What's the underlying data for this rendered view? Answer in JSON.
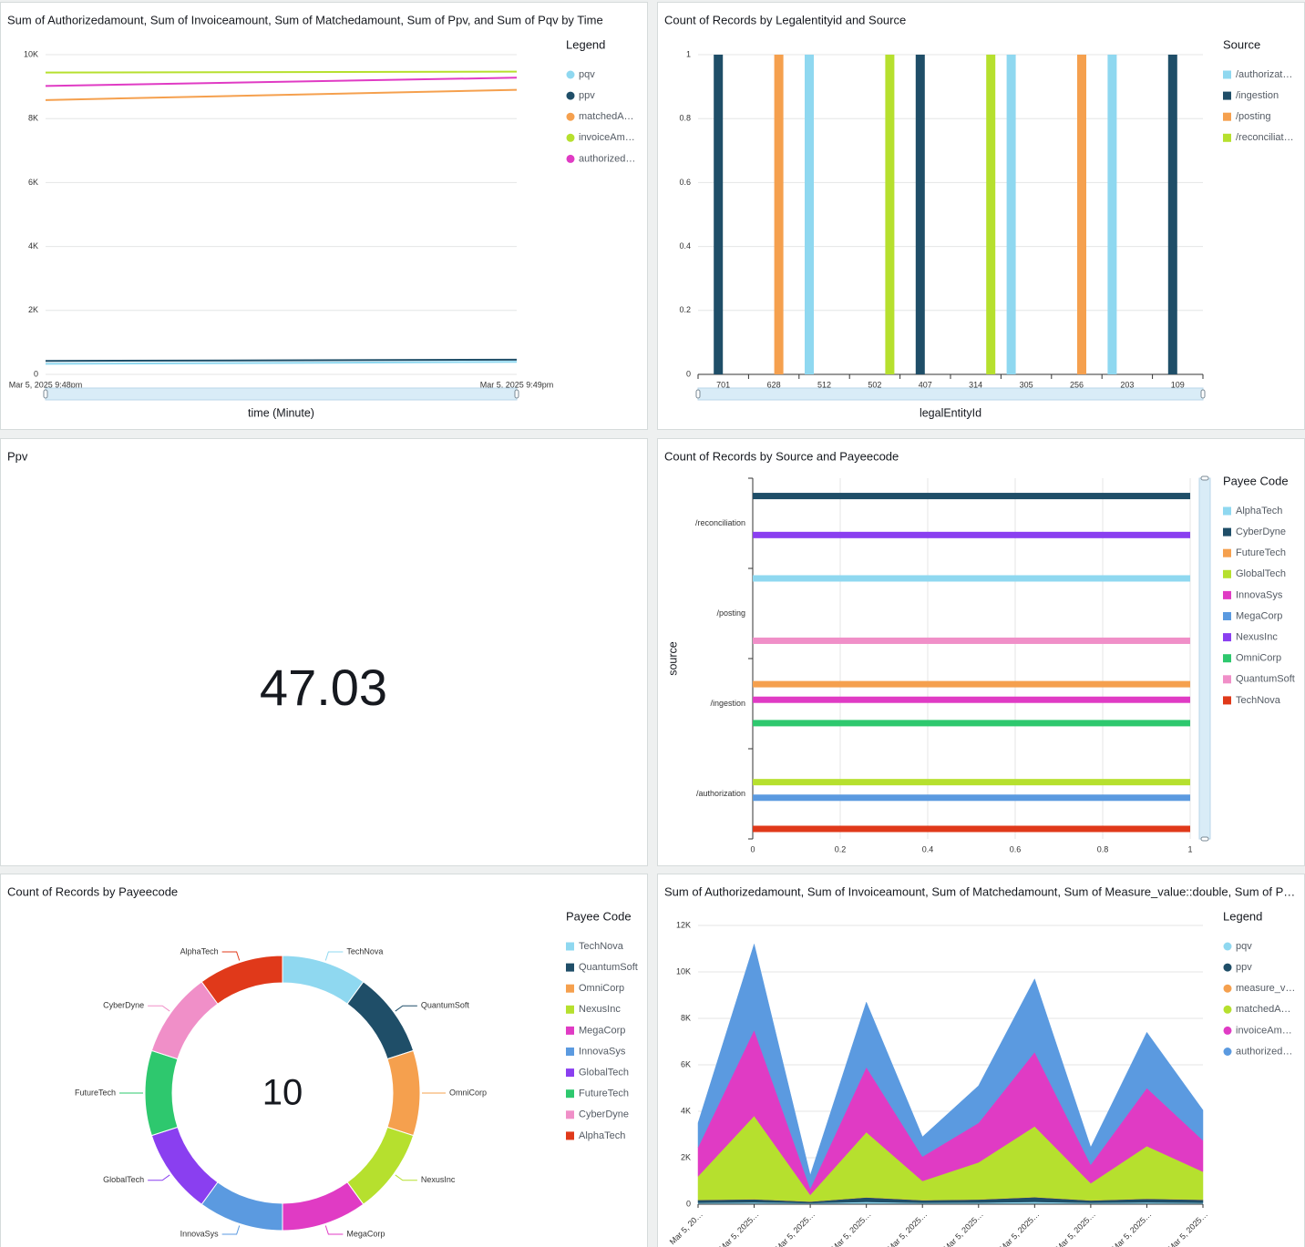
{
  "chart_data": [
    {
      "type": "line",
      "title": "Sum of Authorizedamount, Sum of Invoiceamount, Sum of Matchedamount, Sum of Ppv, and Sum of Pqv by Time",
      "x": [
        "Mar 5, 2025 9:48pm",
        "Mar 5, 2025 9:49pm"
      ],
      "x_label": "time (Minute)",
      "legend_title": "Legend",
      "series": [
        {
          "name": "pqv",
          "color": "#8fd8f0",
          "values": [
            330,
            390
          ]
        },
        {
          "name": "ppv",
          "color": "#1f4e68",
          "values": [
            420,
            460
          ]
        },
        {
          "name": "matchedA…",
          "color": "#f5a04e",
          "values": [
            8580,
            8900
          ]
        },
        {
          "name": "invoiceAm…",
          "color": "#b6e02e",
          "values": [
            9440,
            9470
          ]
        },
        {
          "name": "authorized…",
          "color": "#e03bc4",
          "values": [
            9020,
            9280
          ]
        }
      ],
      "ylim": [
        0,
        10000
      ],
      "yticks": [
        0,
        {
          "value": 2000,
          "label": "2K"
        },
        {
          "value": 4000,
          "label": "4K"
        },
        {
          "value": 6000,
          "label": "6K"
        },
        {
          "value": 8000,
          "label": "8K"
        },
        {
          "value": 10000,
          "label": "10K"
        }
      ],
      "grid": true
    },
    {
      "type": "bar",
      "orientation": "vertical",
      "title": "Count of Records by Legalentityid and Source",
      "categories": [
        "701",
        "628",
        "512",
        "502",
        "407",
        "314",
        "305",
        "256",
        "203",
        "109"
      ],
      "x_label": "legalEntityId",
      "legend_title": "Source",
      "series": [
        {
          "name": "/authorizat…",
          "color": "#8fd8f0",
          "values": [
            null,
            null,
            1,
            null,
            null,
            null,
            1,
            null,
            1,
            null
          ]
        },
        {
          "name": "/ingestion",
          "color": "#1f4e68",
          "values": [
            1,
            null,
            null,
            null,
            1,
            null,
            null,
            null,
            null,
            1
          ]
        },
        {
          "name": "/posting",
          "color": "#f5a04e",
          "values": [
            null,
            1,
            null,
            null,
            null,
            null,
            null,
            1,
            null,
            null
          ]
        },
        {
          "name": "/reconciliat…",
          "color": "#b6e02e",
          "values": [
            null,
            null,
            null,
            1,
            null,
            1,
            null,
            null,
            null,
            null
          ]
        }
      ],
      "ylim": [
        0,
        1
      ],
      "yticks": [
        0,
        0.2,
        0.4,
        0.6,
        0.8,
        1
      ],
      "grid": true
    },
    {
      "type": "kpi",
      "title": "Ppv",
      "value": 47.03
    },
    {
      "type": "bar",
      "orientation": "horizontal",
      "title": "Count of Records by Source and Payeecode",
      "categories": [
        "/reconciliation",
        "/posting",
        "/ingestion",
        "/authorization"
      ],
      "y_label": "source",
      "legend_title": "Payee Code",
      "series": [
        {
          "name": "AlphaTech",
          "color": "#8fd8f0",
          "values": [
            null,
            1,
            null,
            null
          ]
        },
        {
          "name": "CyberDyne",
          "color": "#1f4e68",
          "values": [
            1,
            null,
            null,
            null
          ]
        },
        {
          "name": "FutureTech",
          "color": "#f5a04e",
          "values": [
            null,
            null,
            1,
            null
          ]
        },
        {
          "name": "GlobalTech",
          "color": "#b6e02e",
          "values": [
            null,
            null,
            null,
            1
          ]
        },
        {
          "name": "InnovaSys",
          "color": "#e03bc4",
          "values": [
            null,
            null,
            1,
            null
          ]
        },
        {
          "name": "MegaCorp",
          "color": "#5b9ae0",
          "values": [
            null,
            null,
            null,
            1
          ]
        },
        {
          "name": "NexusInc",
          "color": "#8a3ff0",
          "values": [
            1,
            null,
            null,
            null
          ]
        },
        {
          "name": "OmniCorp",
          "color": "#2ec86e",
          "values": [
            null,
            null,
            1,
            null
          ]
        },
        {
          "name": "QuantumSoft",
          "color": "#f08fc8",
          "values": [
            null,
            1,
            null,
            null
          ]
        },
        {
          "name": "TechNova",
          "color": "#e0391a",
          "values": [
            null,
            null,
            null,
            1
          ]
        }
      ],
      "xlim": [
        0,
        1
      ],
      "xticks": [
        0,
        0.2,
        0.4,
        0.6,
        0.8,
        1
      ],
      "grid": true
    },
    {
      "type": "donut",
      "title": "Count of Records by Payeecode",
      "legend_title": "Payee Code",
      "total": 10,
      "categories": [
        "TechNova",
        "QuantumSoft",
        "OmniCorp",
        "NexusInc",
        "MegaCorp",
        "InnovaSys",
        "GlobalTech",
        "FutureTech",
        "CyberDyne",
        "AlphaTech"
      ],
      "values": [
        1,
        1,
        1,
        1,
        1,
        1,
        1,
        1,
        1,
        1
      ],
      "colors": [
        "#8fd8f0",
        "#1f4e68",
        "#f5a04e",
        "#b6e02e",
        "#e03bc4",
        "#5b9ae0",
        "#8a3ff0",
        "#2ec86e",
        "#f08fc8",
        "#e0391a"
      ]
    },
    {
      "type": "area",
      "stacked": true,
      "title": "Sum of Authorizedamount, Sum of Invoiceamount, Sum of Matchedamount, Sum of Measure_value::double, Sum of P…",
      "x": [
        "Mar 5, 20…",
        "Mar 5, 2025…",
        "Mar 5, 2025…",
        "Mar 5, 2025…",
        "Mar 5, 2025…",
        "Mar 5, 2025…",
        "Mar 5, 2025…",
        "Mar 5, 2025…",
        "Mar 5, 2025…",
        "Mar 5, 2025…"
      ],
      "legend_title": "Legend",
      "series": [
        {
          "name": "pqv",
          "color": "#8fd8f0",
          "values": [
            60,
            80,
            50,
            100,
            60,
            70,
            100,
            60,
            80,
            60
          ]
        },
        {
          "name": "ppv",
          "color": "#1f4e68",
          "values": [
            120,
            130,
            60,
            190,
            110,
            130,
            200,
            100,
            150,
            130
          ]
        },
        {
          "name": "measure_v…",
          "color": "#f5a04e",
          "values": [
            10,
            10,
            10,
            10,
            10,
            10,
            10,
            10,
            10,
            10
          ]
        },
        {
          "name": "matchedA…",
          "color": "#b6e02e",
          "values": [
            1010,
            3580,
            280,
            2800,
            820,
            1590,
            3040,
            730,
            2260,
            1200
          ]
        },
        {
          "name": "invoiceAm…",
          "color": "#e03bc4",
          "values": [
            1250,
            3700,
            270,
            2800,
            1050,
            1700,
            3200,
            800,
            2500,
            1350
          ]
        },
        {
          "name": "authorized…",
          "color": "#5b9ae0",
          "values": [
            1050,
            3700,
            580,
            2800,
            850,
            1600,
            3150,
            750,
            2400,
            1300
          ]
        }
      ],
      "ylim": [
        0,
        12000
      ],
      "yticks": [
        0,
        {
          "value": 2000,
          "label": "2K"
        },
        {
          "value": 4000,
          "label": "4K"
        },
        {
          "value": 6000,
          "label": "6K"
        },
        {
          "value": 8000,
          "label": "8K"
        },
        {
          "value": 10000,
          "label": "10K"
        },
        {
          "value": 12000,
          "label": "12K"
        }
      ],
      "grid": true
    }
  ]
}
